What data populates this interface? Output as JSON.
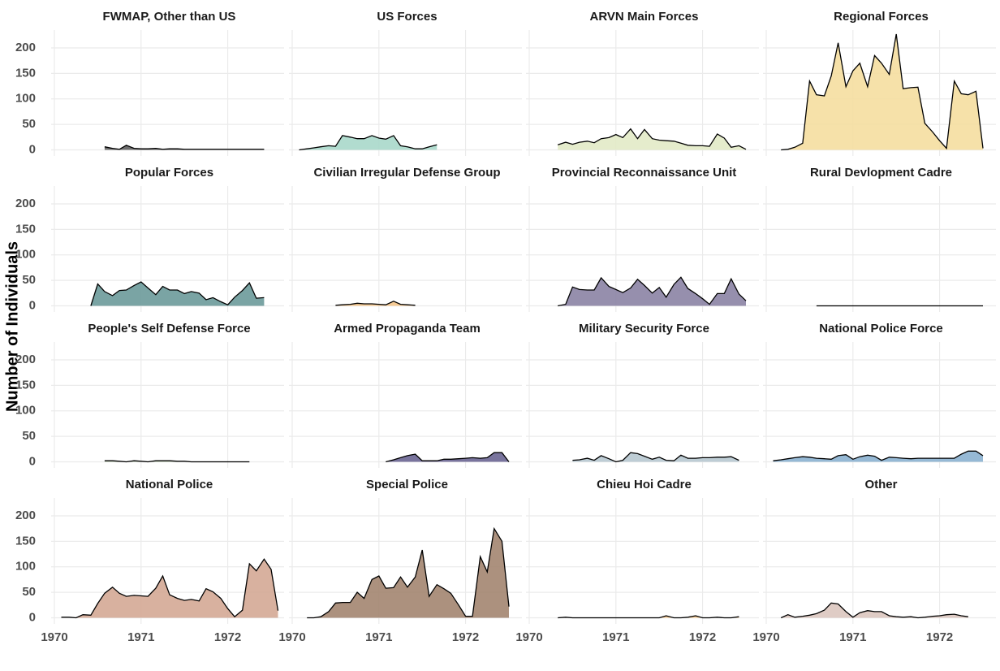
{
  "ylabel": "Number of Individuals",
  "chart_data": [
    {
      "type": "area",
      "title": "FWMAP, Other than US",
      "color": "#5f5f5f",
      "x": [
        1970.58,
        1970.67,
        1970.75,
        1970.83,
        1970.92,
        1971.0,
        1971.08,
        1971.17,
        1971.25,
        1971.33,
        1971.42,
        1971.5,
        1971.58,
        1971.67,
        1971.75,
        1971.83,
        1971.92,
        1972.0,
        1972.08,
        1972.17,
        1972.25,
        1972.33,
        1972.42
      ],
      "values": [
        6,
        3,
        1,
        9,
        3,
        2,
        2,
        3,
        1,
        2,
        2,
        1,
        1,
        1,
        1,
        1,
        1,
        1,
        1,
        1,
        1,
        1,
        1
      ],
      "xlim": [
        1970,
        1972.65
      ],
      "ylim": [
        -12,
        235
      ],
      "xticks": [
        1970,
        1971,
        1972
      ],
      "yticks": [
        0,
        50,
        100,
        150,
        200
      ],
      "grid": true
    },
    {
      "type": "area",
      "title": "US Forces",
      "color": "#a8d8ca",
      "x": [
        1970.08,
        1970.17,
        1970.25,
        1970.33,
        1970.42,
        1970.5,
        1970.58,
        1970.67,
        1970.75,
        1970.83,
        1970.92,
        1971.0,
        1971.08,
        1971.17,
        1971.25,
        1971.33,
        1971.42,
        1971.5,
        1971.58,
        1971.67
      ],
      "values": [
        0,
        2,
        4,
        6,
        8,
        7,
        28,
        25,
        22,
        22,
        28,
        23,
        21,
        28,
        8,
        6,
        2,
        2,
        6,
        10
      ],
      "xlim": [
        1970,
        1972.65
      ],
      "ylim": [
        -12,
        235
      ],
      "xticks": [
        1970,
        1971,
        1972
      ],
      "yticks": [
        0,
        50,
        100,
        150,
        200
      ],
      "grid": true
    },
    {
      "type": "area",
      "title": "ARVN Main Forces",
      "color": "#e2eac6",
      "x": [
        1970.33,
        1970.42,
        1970.5,
        1970.58,
        1970.67,
        1970.75,
        1970.83,
        1970.92,
        1971.0,
        1971.08,
        1971.17,
        1971.25,
        1971.33,
        1971.42,
        1971.5,
        1971.58,
        1971.67,
        1971.75,
        1971.83,
        1971.92,
        1972.0,
        1972.08,
        1972.17,
        1972.25,
        1972.33,
        1972.42,
        1972.5
      ],
      "values": [
        10,
        15,
        11,
        15,
        17,
        14,
        22,
        24,
        30,
        24,
        41,
        22,
        40,
        22,
        19,
        18,
        17,
        13,
        9,
        8,
        8,
        7,
        31,
        23,
        5,
        8,
        1
      ],
      "xlim": [
        1970,
        1972.65
      ],
      "ylim": [
        -12,
        235
      ],
      "xticks": [
        1970,
        1971,
        1972
      ],
      "yticks": [
        0,
        50,
        100,
        150,
        200
      ],
      "grid": true
    },
    {
      "type": "area",
      "title": "Regional Forces",
      "color": "#f5dea0",
      "x": [
        1970.17,
        1970.25,
        1970.33,
        1970.42,
        1970.5,
        1970.58,
        1970.67,
        1970.75,
        1970.83,
        1970.92,
        1971.0,
        1971.08,
        1971.17,
        1971.25,
        1971.33,
        1971.42,
        1971.5,
        1971.58,
        1971.67,
        1971.75,
        1971.83,
        1971.92,
        1972.0,
        1972.08,
        1972.17,
        1972.25,
        1972.33,
        1972.42,
        1972.5
      ],
      "values": [
        0,
        1,
        5,
        13,
        135,
        108,
        106,
        145,
        210,
        124,
        155,
        170,
        124,
        185,
        170,
        148,
        227,
        120,
        122,
        123,
        52,
        35,
        18,
        3,
        135,
        110,
        108,
        115,
        3
      ],
      "xlim": [
        1970,
        1972.65
      ],
      "ylim": [
        -12,
        235
      ],
      "xticks": [
        1970,
        1971,
        1972
      ],
      "yticks": [
        0,
        50,
        100,
        150,
        200
      ],
      "grid": true
    },
    {
      "type": "area",
      "title": "Popular Forces",
      "color": "#6c9a9a",
      "x": [
        1970.42,
        1970.5,
        1970.58,
        1970.67,
        1970.75,
        1970.83,
        1970.92,
        1971.0,
        1971.08,
        1971.17,
        1971.25,
        1971.33,
        1971.42,
        1971.5,
        1971.58,
        1971.67,
        1971.75,
        1971.83,
        1971.92,
        1972.0,
        1972.08,
        1972.17,
        1972.25,
        1972.33,
        1972.42
      ],
      "values": [
        0,
        43,
        28,
        20,
        30,
        31,
        40,
        47,
        35,
        22,
        38,
        31,
        31,
        24,
        28,
        25,
        12,
        16,
        8,
        2,
        17,
        30,
        45,
        15,
        16
      ],
      "xlim": [
        1970,
        1972.65
      ],
      "ylim": [
        -12,
        235
      ],
      "xticks": [
        1970,
        1971,
        1972
      ],
      "yticks": [
        0,
        50,
        100,
        150,
        200
      ],
      "grid": true
    },
    {
      "type": "area",
      "title": "Civilian Irregular Defense Group",
      "color": "#f5c58a",
      "x": [
        1970.5,
        1970.58,
        1970.67,
        1970.75,
        1970.83,
        1970.92,
        1971.0,
        1971.08,
        1971.17,
        1971.25,
        1971.33,
        1971.42
      ],
      "values": [
        1,
        2,
        3,
        5,
        4,
        4,
        3,
        2,
        9,
        3,
        2,
        1
      ],
      "xlim": [
        1970,
        1972.65
      ],
      "ylim": [
        -12,
        235
      ],
      "xticks": [
        1970,
        1971,
        1972
      ],
      "yticks": [
        0,
        50,
        100,
        150,
        200
      ],
      "grid": true
    },
    {
      "type": "area",
      "title": "Provincial Reconnaissance Unit",
      "color": "#8b83a4",
      "x": [
        1970.33,
        1970.42,
        1970.5,
        1970.58,
        1970.67,
        1970.75,
        1970.83,
        1970.92,
        1971.0,
        1971.08,
        1971.17,
        1971.25,
        1971.33,
        1971.42,
        1971.5,
        1971.58,
        1971.67,
        1971.75,
        1971.83,
        1971.92,
        1972.0,
        1972.08,
        1972.17,
        1972.25,
        1972.33,
        1972.42,
        1972.5
      ],
      "values": [
        0,
        3,
        37,
        32,
        31,
        31,
        55,
        38,
        32,
        26,
        35,
        52,
        40,
        25,
        36,
        17,
        42,
        56,
        34,
        24,
        14,
        3,
        24,
        24,
        53,
        23,
        10
      ],
      "xlim": [
        1970,
        1972.65
      ],
      "ylim": [
        -12,
        235
      ],
      "xticks": [
        1970,
        1971,
        1972
      ],
      "yticks": [
        0,
        50,
        100,
        150,
        200
      ],
      "grid": true
    },
    {
      "type": "area",
      "title": "Rural Devlopment Cadre",
      "color": "#c9d4e0",
      "x": [
        1970.58,
        1970.67,
        1970.75,
        1970.83,
        1970.92,
        1971.0,
        1971.08,
        1971.17,
        1971.25,
        1971.33,
        1971.42,
        1971.5,
        1971.58,
        1971.67,
        1971.75,
        1971.83,
        1971.92,
        1972.0,
        1972.08,
        1972.17,
        1972.25,
        1972.33,
        1972.42,
        1972.5
      ],
      "values": [
        0,
        0,
        0,
        0,
        0,
        0,
        0,
        0,
        0,
        0,
        0,
        0,
        0,
        0,
        0,
        0,
        0,
        0,
        0,
        0,
        0,
        0,
        0,
        0
      ],
      "xlim": [
        1970,
        1972.65
      ],
      "ylim": [
        -12,
        235
      ],
      "xticks": [
        1970,
        1971,
        1972
      ],
      "yticks": [
        0,
        50,
        100,
        150,
        200
      ],
      "grid": true
    },
    {
      "type": "area",
      "title": "People's Self Defense Force",
      "color": "#b5c9a8",
      "x": [
        1970.58,
        1970.67,
        1970.75,
        1970.83,
        1970.92,
        1971.0,
        1971.08,
        1971.17,
        1971.25,
        1971.33,
        1971.42,
        1971.5,
        1971.58,
        1971.67,
        1971.75,
        1971.83,
        1971.92,
        1972.0,
        1972.08,
        1972.17,
        1972.25
      ],
      "values": [
        2,
        2,
        1,
        0,
        2,
        1,
        0,
        2,
        2,
        2,
        1,
        1,
        0,
        0,
        0,
        0,
        0,
        0,
        0,
        0,
        0
      ],
      "xlim": [
        1970,
        1972.65
      ],
      "ylim": [
        -12,
        235
      ],
      "xticks": [
        1970,
        1971,
        1972
      ],
      "yticks": [
        0,
        50,
        100,
        150,
        200
      ],
      "grid": true
    },
    {
      "type": "area",
      "title": "Armed Propaganda Team",
      "color": "#6a6592",
      "x": [
        1971.08,
        1971.17,
        1971.25,
        1971.33,
        1971.42,
        1971.5,
        1971.58,
        1971.67,
        1971.75,
        1971.83,
        1971.92,
        1972.0,
        1972.08,
        1972.17,
        1972.25,
        1972.33,
        1972.42,
        1972.5
      ],
      "values": [
        0,
        4,
        8,
        12,
        15,
        2,
        2,
        2,
        5,
        5,
        6,
        7,
        8,
        7,
        8,
        18,
        18,
        0
      ],
      "xlim": [
        1970,
        1972.65
      ],
      "ylim": [
        -12,
        235
      ],
      "xticks": [
        1970,
        1971,
        1972
      ],
      "yticks": [
        0,
        50,
        100,
        150,
        200
      ],
      "grid": true
    },
    {
      "type": "area",
      "title": "Military Security Force",
      "color": "#b7c8d0",
      "x": [
        1970.5,
        1970.58,
        1970.67,
        1970.75,
        1970.83,
        1970.92,
        1971.0,
        1971.08,
        1971.17,
        1971.25,
        1971.33,
        1971.42,
        1971.5,
        1971.58,
        1971.67,
        1971.75,
        1971.83,
        1971.92,
        1972.0,
        1972.08,
        1972.17,
        1972.25,
        1972.33,
        1972.42
      ],
      "values": [
        3,
        4,
        7,
        3,
        12,
        6,
        0,
        3,
        18,
        16,
        11,
        5,
        9,
        3,
        2,
        13,
        7,
        7,
        8,
        8,
        9,
        9,
        10,
        3
      ],
      "xlim": [
        1970,
        1972.65
      ],
      "ylim": [
        -12,
        235
      ],
      "xticks": [
        1970,
        1971,
        1972
      ],
      "yticks": [
        0,
        50,
        100,
        150,
        200
      ],
      "grid": true
    },
    {
      "type": "area",
      "title": "National Police Force",
      "color": "#8bb1d0",
      "x": [
        1970.08,
        1970.17,
        1970.25,
        1970.33,
        1970.42,
        1970.5,
        1970.58,
        1970.67,
        1970.75,
        1970.83,
        1970.92,
        1971.0,
        1971.08,
        1971.17,
        1971.25,
        1971.33,
        1971.42,
        1971.5,
        1971.58,
        1971.67,
        1971.75,
        1971.83,
        1971.92,
        1972.0,
        1972.08,
        1972.17,
        1972.25,
        1972.33,
        1972.42,
        1972.5
      ],
      "values": [
        2,
        4,
        6,
        8,
        10,
        9,
        7,
        6,
        5,
        12,
        14,
        5,
        10,
        13,
        11,
        3,
        9,
        8,
        7,
        6,
        7,
        7,
        7,
        7,
        7,
        7,
        15,
        21,
        21,
        12
      ],
      "xlim": [
        1970,
        1972.65
      ],
      "ylim": [
        -12,
        235
      ],
      "xticks": [
        1970,
        1971,
        1972
      ],
      "yticks": [
        0,
        50,
        100,
        150,
        200
      ],
      "grid": true
    },
    {
      "type": "area",
      "title": "National Police",
      "color": "#d4a995",
      "x": [
        1970.08,
        1970.17,
        1970.25,
        1970.33,
        1970.42,
        1970.5,
        1970.58,
        1970.67,
        1970.75,
        1970.83,
        1970.92,
        1971.0,
        1971.08,
        1971.17,
        1971.25,
        1971.33,
        1971.42,
        1971.5,
        1971.58,
        1971.67,
        1971.75,
        1971.83,
        1971.92,
        1972.0,
        1972.08,
        1972.17,
        1972.25,
        1972.33,
        1972.42,
        1972.5,
        1972.58
      ],
      "values": [
        1,
        1,
        0,
        6,
        5,
        28,
        48,
        60,
        48,
        42,
        44,
        43,
        42,
        58,
        82,
        45,
        38,
        34,
        36,
        33,
        57,
        51,
        38,
        18,
        2,
        15,
        106,
        92,
        115,
        95,
        14
      ],
      "xlim": [
        1970,
        1972.65
      ],
      "ylim": [
        -12,
        235
      ],
      "xticks": [
        1970,
        1971,
        1972
      ],
      "yticks": [
        0,
        50,
        100,
        150,
        200
      ],
      "grid": true
    },
    {
      "type": "area",
      "title": "Special Police",
      "color": "#a38570",
      "x": [
        1970.17,
        1970.25,
        1970.33,
        1970.42,
        1970.5,
        1970.58,
        1970.67,
        1970.75,
        1970.83,
        1970.92,
        1971.0,
        1971.08,
        1971.17,
        1971.25,
        1971.33,
        1971.42,
        1971.5,
        1971.58,
        1971.67,
        1971.75,
        1971.83,
        1971.92,
        1972.0,
        1972.08,
        1972.17,
        1972.25,
        1972.33,
        1972.42,
        1972.5
      ],
      "values": [
        0,
        0,
        2,
        12,
        29,
        30,
        30,
        50,
        38,
        75,
        82,
        58,
        59,
        80,
        60,
        80,
        133,
        42,
        65,
        57,
        48,
        25,
        3,
        3,
        120,
        90,
        175,
        150,
        22
      ],
      "xlim": [
        1970,
        1972.65
      ],
      "ylim": [
        -12,
        235
      ],
      "xticks": [
        1970,
        1971,
        1972
      ],
      "yticks": [
        0,
        50,
        100,
        150,
        200
      ],
      "grid": true
    },
    {
      "type": "area",
      "title": "Chieu Hoi Cadre",
      "color": "#f5c58a",
      "x": [
        1970.33,
        1970.42,
        1970.5,
        1970.58,
        1970.67,
        1970.75,
        1970.83,
        1970.92,
        1971.0,
        1971.08,
        1971.17,
        1971.25,
        1971.33,
        1971.42,
        1971.5,
        1971.58,
        1971.67,
        1971.75,
        1971.83,
        1971.92,
        1972.0,
        1972.08,
        1972.17,
        1972.25,
        1972.33,
        1972.42
      ],
      "values": [
        0,
        1,
        0,
        0,
        0,
        0,
        0,
        0,
        0,
        0,
        0,
        0,
        0,
        0,
        0,
        4,
        0,
        0,
        1,
        4,
        0,
        0,
        1,
        0,
        0,
        2
      ],
      "xlim": [
        1970,
        1972.65
      ],
      "ylim": [
        -12,
        235
      ],
      "xticks": [
        1970,
        1971,
        1972
      ],
      "yticks": [
        0,
        50,
        100,
        150,
        200
      ],
      "grid": true
    },
    {
      "type": "area",
      "title": "Other",
      "color": "#dbc7bf",
      "x": [
        1970.17,
        1970.25,
        1970.33,
        1970.42,
        1970.5,
        1970.58,
        1970.67,
        1970.75,
        1970.83,
        1970.92,
        1971.0,
        1971.08,
        1971.17,
        1971.25,
        1971.33,
        1971.42,
        1971.5,
        1971.58,
        1971.67,
        1971.75,
        1971.83,
        1971.92,
        1972.0,
        1972.08,
        1972.17,
        1972.25,
        1972.33
      ],
      "values": [
        0,
        6,
        1,
        3,
        5,
        8,
        15,
        29,
        27,
        12,
        1,
        10,
        14,
        12,
        12,
        4,
        2,
        1,
        2,
        0,
        1,
        3,
        4,
        6,
        7,
        4,
        2
      ],
      "xlim": [
        1970,
        1972.65
      ],
      "ylim": [
        -12,
        235
      ],
      "xticks": [
        1970,
        1971,
        1972
      ],
      "yticks": [
        0,
        50,
        100,
        150,
        200
      ],
      "grid": true
    }
  ]
}
